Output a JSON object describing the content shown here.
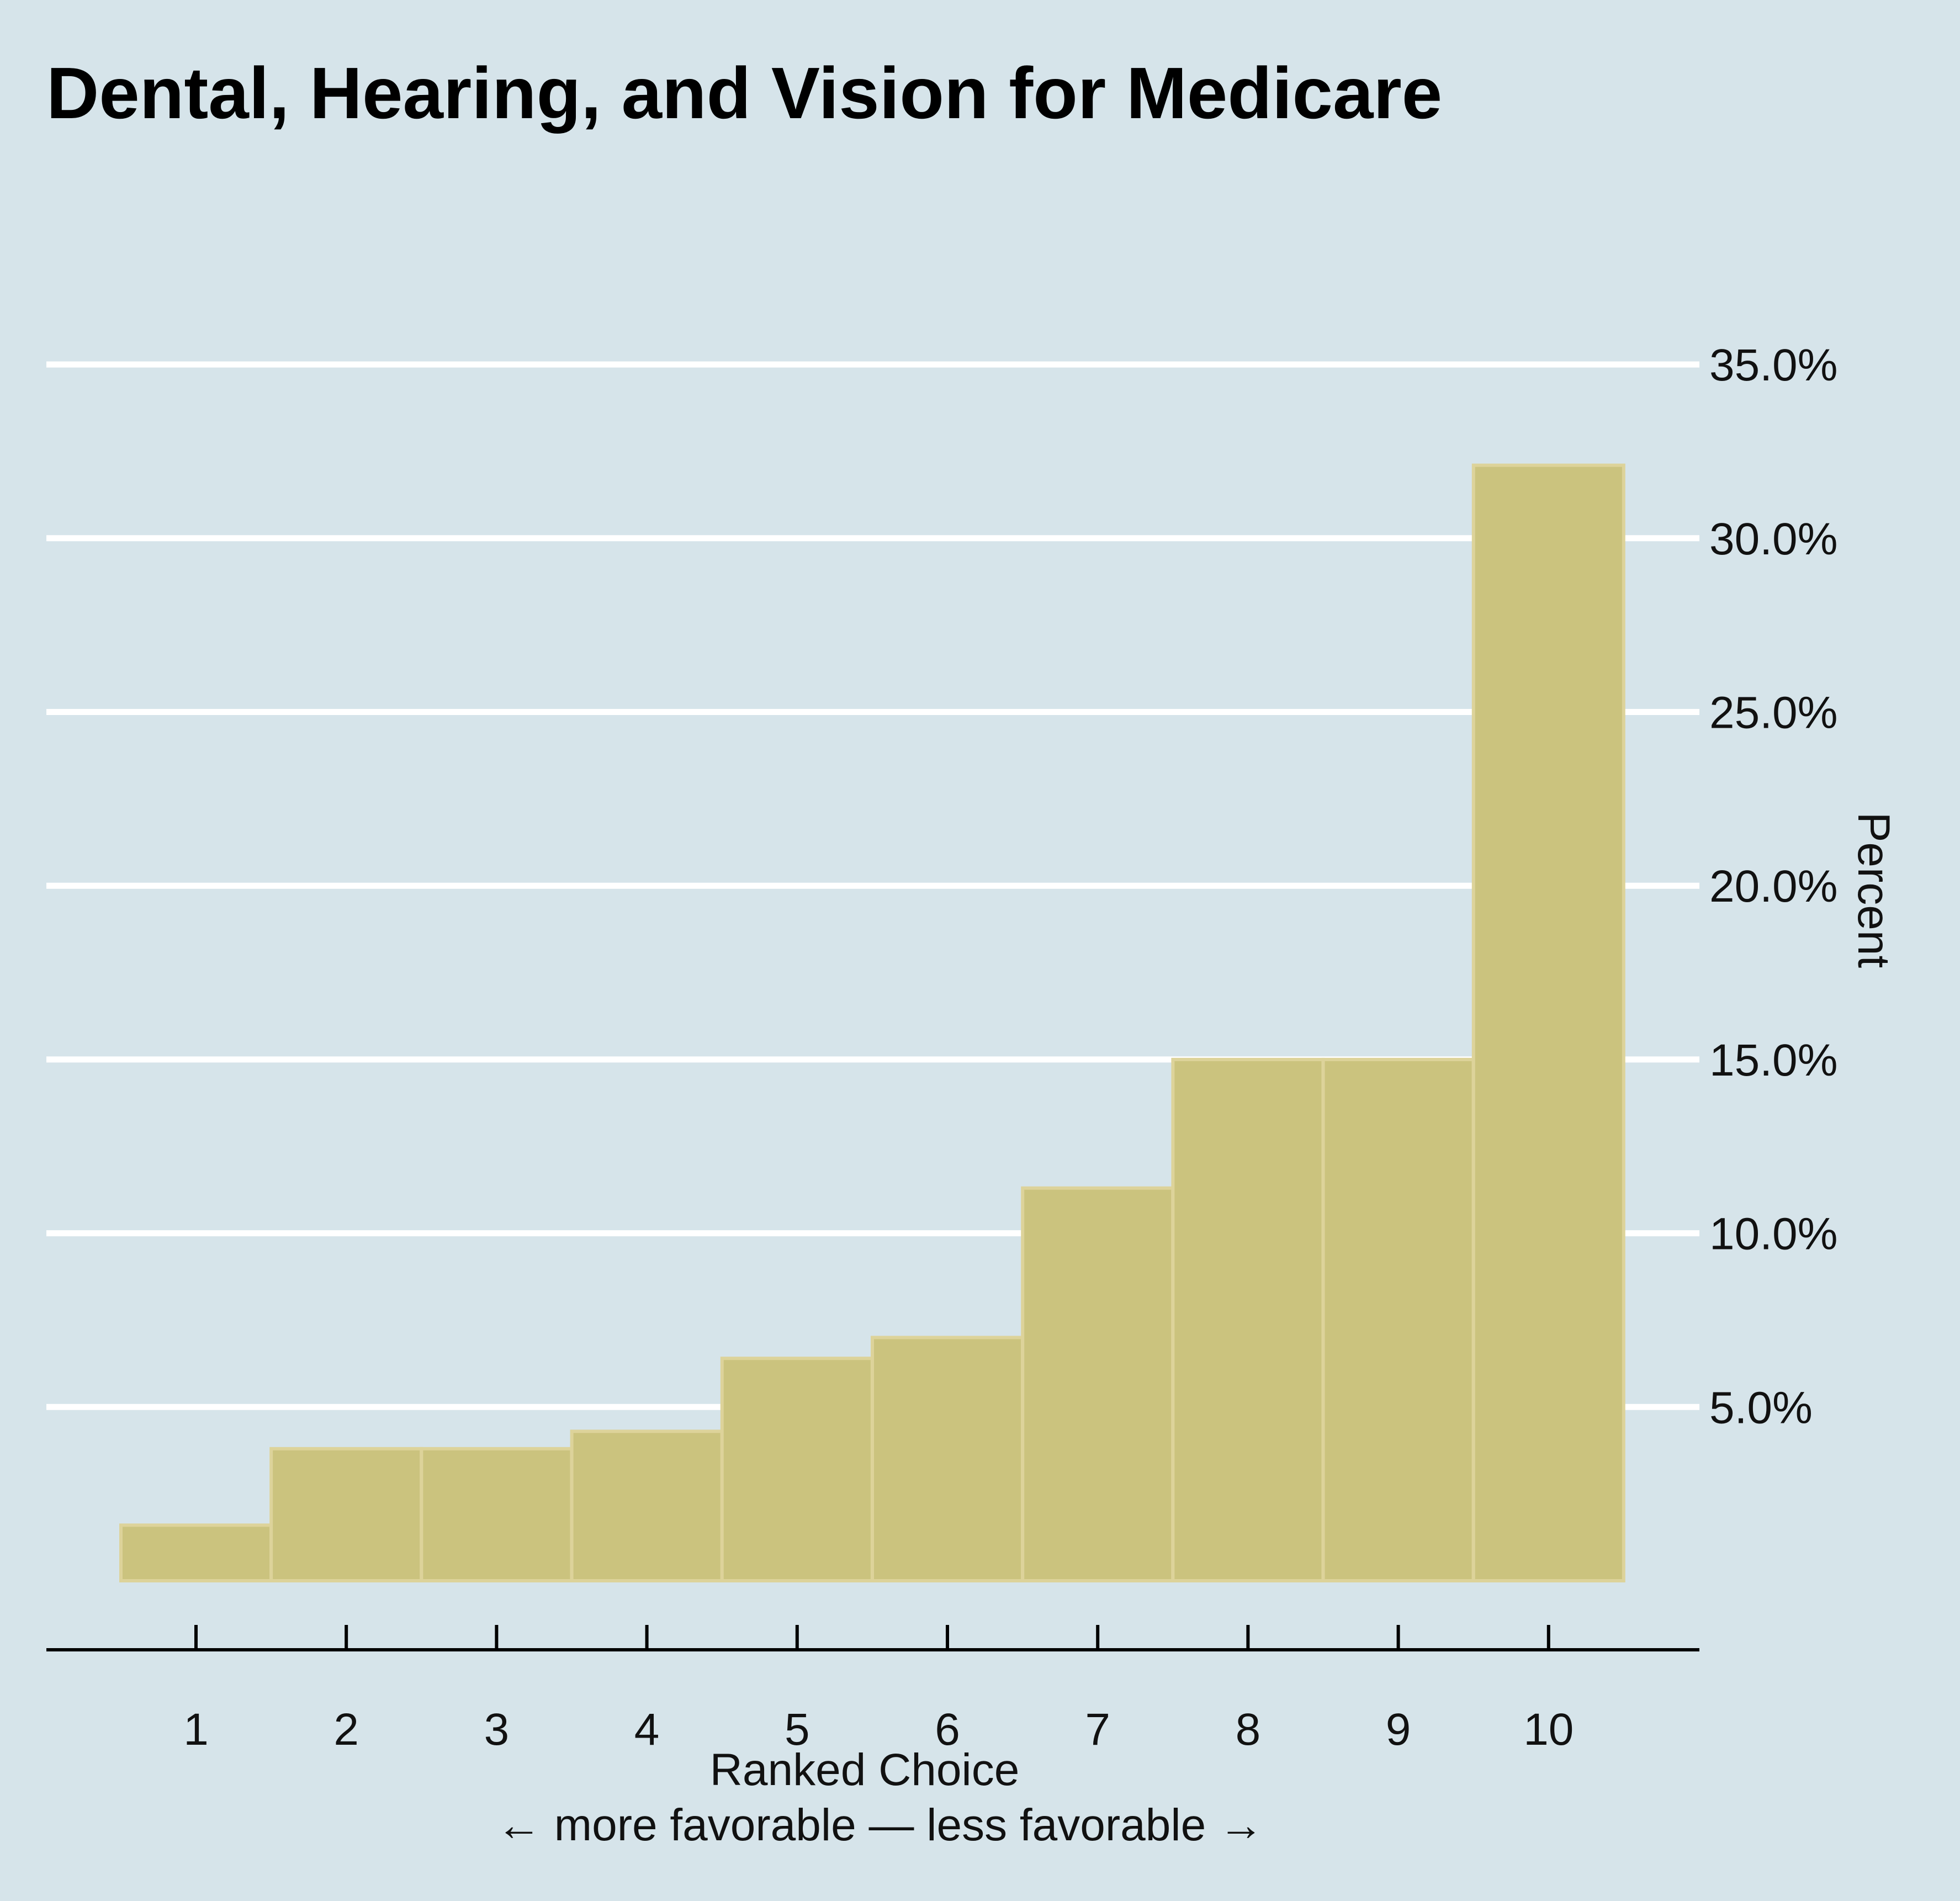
{
  "chart_data": {
    "type": "bar",
    "title": "Dental, Hearing, and Vision for Medicare",
    "categories": [
      "1",
      "2",
      "3",
      "4",
      "5",
      "6",
      "7",
      "8",
      "9",
      "10"
    ],
    "values": [
      1.6,
      3.8,
      3.8,
      4.3,
      6.4,
      7.0,
      11.3,
      15.0,
      15.0,
      32.1
    ],
    "xlabel": "Ranked Choice",
    "xlabel_sub": "← more favorable — less favorable →",
    "ylabel": "Percent",
    "yticks": [
      "5.0%",
      "10.0%",
      "15.0%",
      "20.0%",
      "25.0%",
      "30.0%",
      "35.0%"
    ],
    "ytick_values": [
      5,
      10,
      15,
      20,
      25,
      30,
      35
    ],
    "ylim": [
      0,
      35
    ],
    "grid": true,
    "y_axis_side": "right",
    "colors": {
      "background": "#d6e4ea",
      "bar_fill": "#cbc37e",
      "bar_stroke": "#ddd39a",
      "gridline": "#ffffff",
      "axis": "#000000"
    }
  }
}
